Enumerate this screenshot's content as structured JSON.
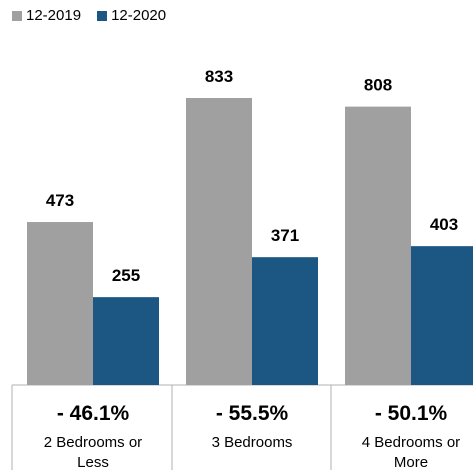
{
  "chart_data": {
    "type": "bar",
    "categories": [
      [
        "2 Bedrooms or",
        "Less"
      ],
      [
        "3 Bedrooms"
      ],
      [
        "4 Bedrooms or",
        "More"
      ]
    ],
    "series": [
      {
        "name": "12-2019",
        "values": [
          473,
          833,
          808
        ],
        "color": "#a0a0a0"
      },
      {
        "name": "12-2020",
        "values": [
          255,
          371,
          403
        ],
        "color": "#1b5782"
      }
    ],
    "changes": [
      "- 46.1%",
      "- 55.5%",
      "- 50.1%"
    ],
    "ylim": [
      0,
      833
    ],
    "grid": false,
    "legend_position": "top-left",
    "title": "",
    "xlabel": "",
    "ylabel": ""
  }
}
